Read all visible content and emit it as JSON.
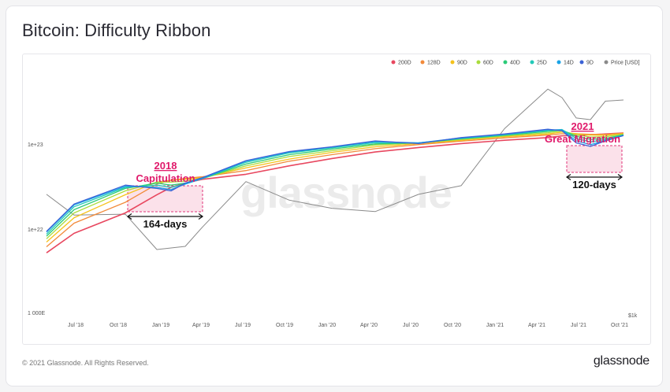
{
  "title": "Bitcoin: Difficulty Ribbon",
  "footer": {
    "copyright": "© 2021 Glassnode. All Rights Reserved.",
    "brand": "glassnode"
  },
  "watermark": "glassnode",
  "colors": {
    "background": "#f5f5f6",
    "card": "#ffffff",
    "price": "#8a8a8a",
    "highlight_fill": "#f8c8d8",
    "highlight_border": "#e2357a",
    "annotation_text": "#e01a6b"
  },
  "chart_data": {
    "type": "line",
    "legend_position": "top-right",
    "y_scale": "log",
    "y_left_tick_labels": [
      "1e+23",
      "1e+22",
      "1 000E"
    ],
    "y_right_tick_labels": [
      "$1k"
    ],
    "x_tick_labels": [
      "Jul '18",
      "Oct '18",
      "Jan '19",
      "Apr '19",
      "Jul '19",
      "Oct '19",
      "Jan '20",
      "Apr '20",
      "Jul '20",
      "Oct '20",
      "Jan '21",
      "Apr '21",
      "Jul '21",
      "Oct '21"
    ],
    "x": [
      "Apr '18",
      "Jul '18",
      "Oct '18",
      "Dec '18",
      "Jan '19",
      "Feb '19",
      "Apr '19",
      "Jul '19",
      "Oct '19",
      "Jan '20",
      "Apr '20",
      "Jul '20",
      "Oct '20",
      "Jan '21",
      "Apr '21",
      "May '21",
      "Jun '21",
      "Jul '21",
      "Aug '21",
      "Oct '21"
    ],
    "series": [
      {
        "name": "200D",
        "color": "#e8475f",
        "values": [
          5.6,
          9.5,
          16.5,
          27,
          33,
          37,
          41,
          47,
          59,
          72,
          86,
          97,
          108,
          118,
          127,
          133,
          135,
          137,
          140,
          144
        ]
      },
      {
        "name": "128D",
        "color": "#f28a3a",
        "values": [
          6.6,
          12.5,
          22,
          36,
          40,
          42,
          44,
          52,
          67,
          80,
          94,
          105,
          115,
          126,
          136,
          141,
          141,
          139,
          139,
          143
        ]
      },
      {
        "name": "90D",
        "color": "#f5c21b",
        "values": [
          7.5,
          14.5,
          27,
          38,
          40,
          41,
          43,
          56,
          71,
          85,
          99,
          108,
          118,
          130,
          140,
          147,
          141,
          136,
          135,
          141
        ]
      },
      {
        "name": "60D",
        "color": "#a9dc3c",
        "values": [
          8.2,
          16.5,
          30,
          38,
          38,
          39,
          42,
          59,
          76,
          89,
          104,
          110,
          121,
          133,
          145,
          152,
          137,
          129,
          130,
          139
        ]
      },
      {
        "name": "40D",
        "color": "#2bcb78",
        "values": [
          8.8,
          18,
          32,
          37,
          35,
          37,
          42,
          62,
          80,
          93,
          107,
          110,
          123,
          135,
          150,
          156,
          131,
          121,
          124,
          137
        ]
      },
      {
        "name": "25D",
        "color": "#22c9b8",
        "values": [
          9.3,
          19.5,
          33,
          35,
          33,
          36,
          42,
          65,
          84,
          96,
          111,
          110,
          124,
          137,
          154,
          158,
          124,
          113,
          120,
          136
        ]
      },
      {
        "name": "14D",
        "color": "#1aa3e6",
        "values": [
          9.8,
          20.5,
          34,
          33,
          31,
          36,
          42,
          67,
          86,
          98,
          114,
          110,
          126,
          139,
          157,
          156,
          116,
          105,
          117,
          135
        ]
      },
      {
        "name": "9D",
        "color": "#3b62d6",
        "values": [
          10,
          21,
          35,
          32,
          30,
          37,
          43,
          68,
          87,
          99,
          116,
          108,
          127,
          140,
          159,
          153,
          110,
          100,
          116,
          134
        ]
      },
      {
        "name": "Price [USD]",
        "color": "#8a8a8a",
        "values": [
          9200,
          6400,
          6500,
          3500,
          3600,
          3700,
          5200,
          11500,
          8300,
          7200,
          6800,
          9200,
          10700,
          29000,
          58000,
          50000,
          35000,
          34000,
          47000,
          48000
        ]
      }
    ],
    "annotations": [
      {
        "title": "2018",
        "subtitle": "Capitulation",
        "duration": "164-days"
      },
      {
        "title": "2021",
        "subtitle": "Great Migration",
        "duration": "120-days"
      }
    ]
  }
}
